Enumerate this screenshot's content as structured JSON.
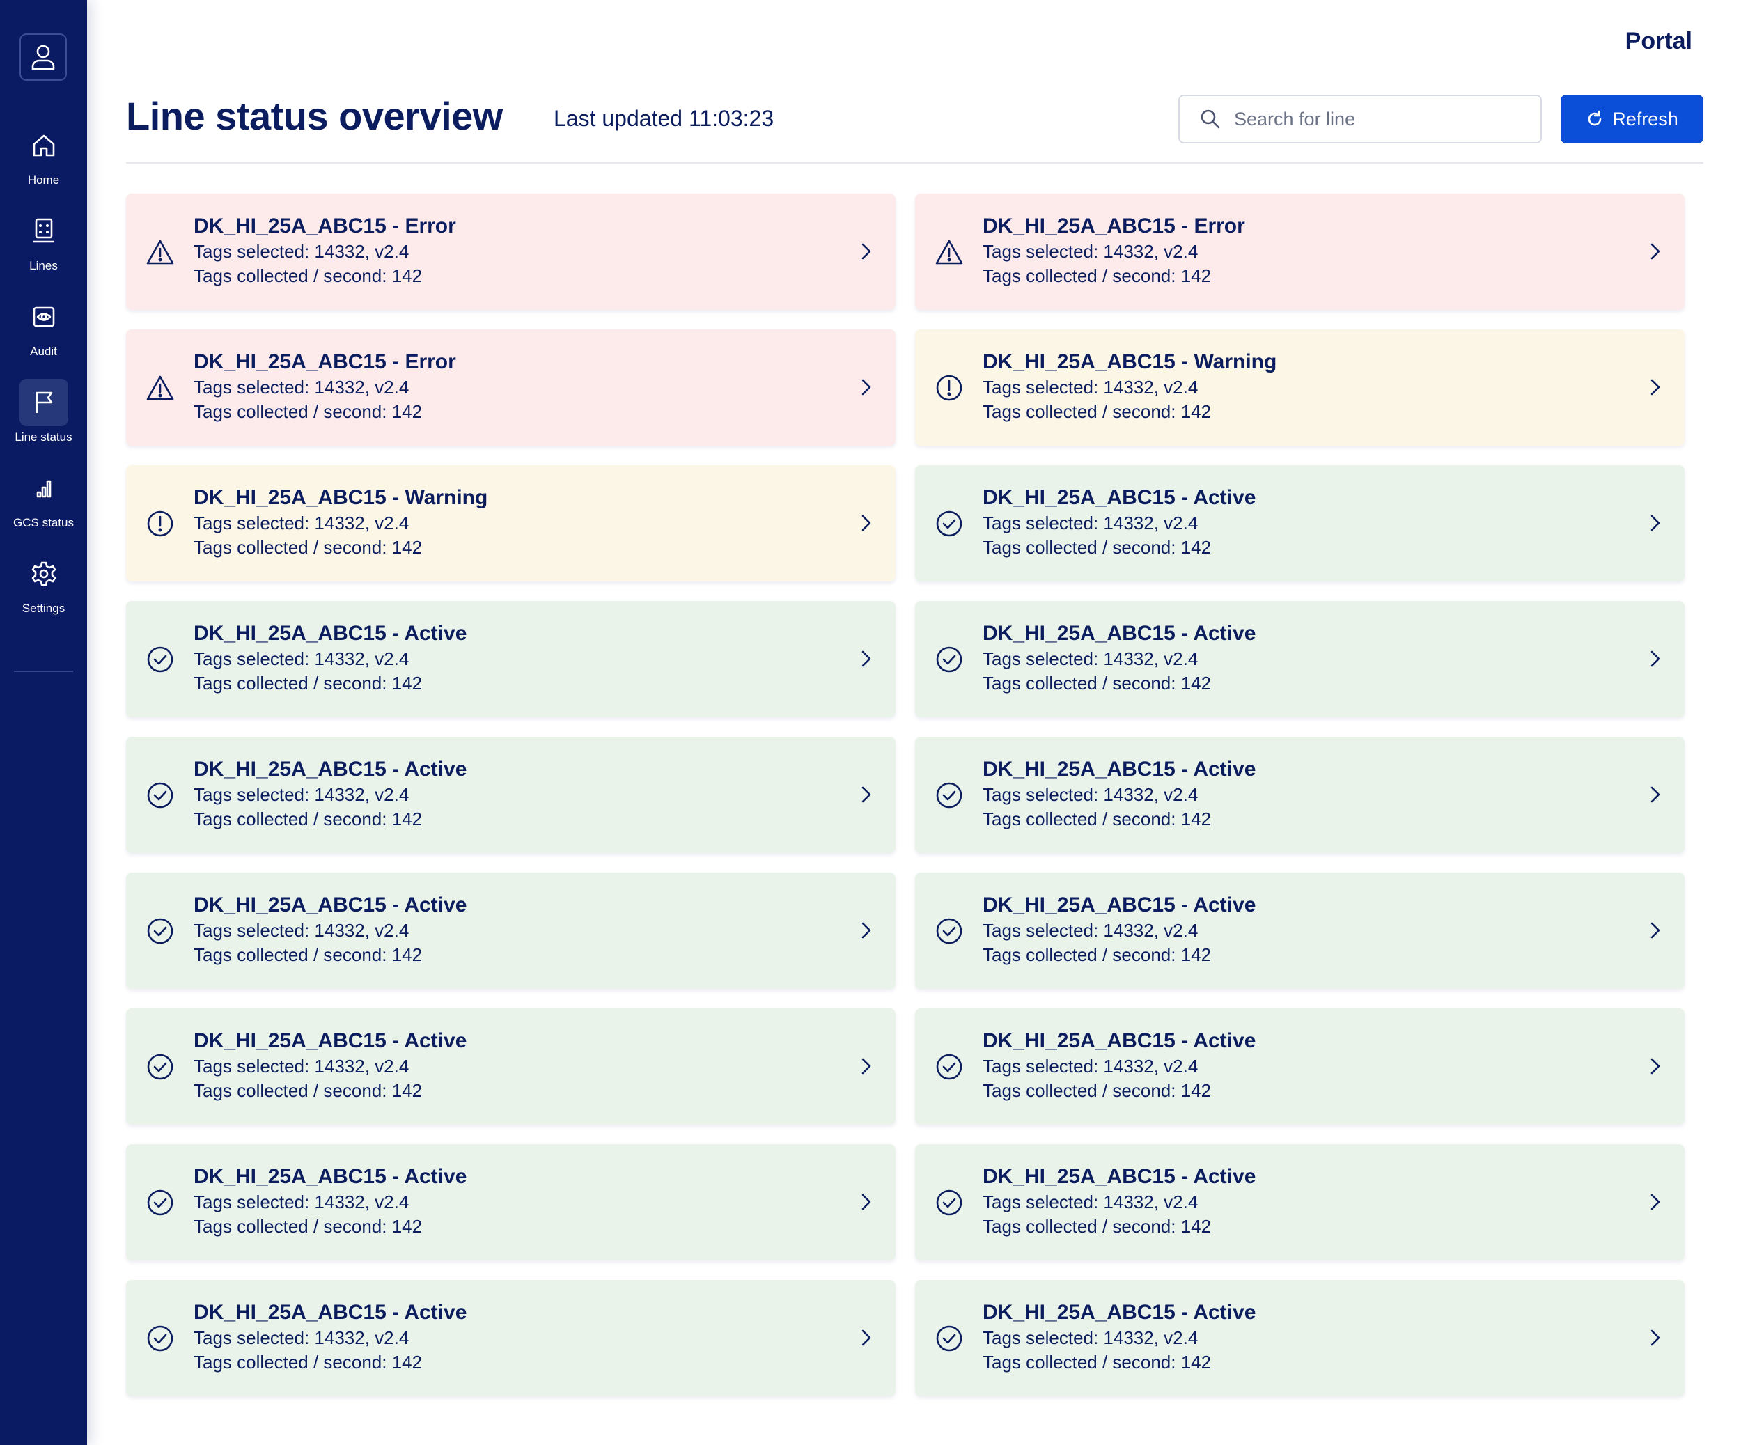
{
  "app": {
    "brand": "Portal"
  },
  "sidebar": {
    "items": [
      {
        "label": "Home",
        "icon": "home-icon"
      },
      {
        "label": "Lines",
        "icon": "lines-icon"
      },
      {
        "label": "Audit",
        "icon": "eye-icon"
      },
      {
        "label": "Line status",
        "icon": "flag-icon",
        "active": true
      },
      {
        "label": "GCS status",
        "icon": "bar-chart-icon"
      },
      {
        "label": "Settings",
        "icon": "gear-icon"
      }
    ]
  },
  "header": {
    "title": "Line status overview",
    "last_updated": "Last updated 11:03:23",
    "search_placeholder": "Search for line",
    "refresh_label": "Refresh"
  },
  "colors": {
    "sidebar_bg": "#0a1a63",
    "primary": "#0b4fd8",
    "error_bg": "#fcebea",
    "warning_bg": "#fcf6e6",
    "active_bg": "#eaf3ea",
    "text": "#0b1d5e"
  },
  "cards": [
    {
      "status": "error",
      "title": "DK_HI_25A_ABC15 - Error",
      "tags_selected": "Tags selected: 14332, v2.4",
      "tags_rate": "Tags collected / second: 142"
    },
    {
      "status": "error",
      "title": "DK_HI_25A_ABC15 - Error",
      "tags_selected": "Tags selected: 14332, v2.4",
      "tags_rate": "Tags collected / second: 142"
    },
    {
      "status": "error",
      "title": "DK_HI_25A_ABC15 - Error",
      "tags_selected": "Tags selected: 14332, v2.4",
      "tags_rate": "Tags collected / second: 142"
    },
    {
      "status": "warning",
      "title": "DK_HI_25A_ABC15 - Warning",
      "tags_selected": "Tags selected: 14332, v2.4",
      "tags_rate": "Tags collected / second: 142"
    },
    {
      "status": "warning",
      "title": "DK_HI_25A_ABC15 - Warning",
      "tags_selected": "Tags selected: 14332, v2.4",
      "tags_rate": "Tags collected / second: 142"
    },
    {
      "status": "active",
      "title": "DK_HI_25A_ABC15 - Active",
      "tags_selected": "Tags selected: 14332, v2.4",
      "tags_rate": "Tags collected / second: 142"
    },
    {
      "status": "active",
      "title": "DK_HI_25A_ABC15 - Active",
      "tags_selected": "Tags selected: 14332, v2.4",
      "tags_rate": "Tags collected / second: 142"
    },
    {
      "status": "active",
      "title": "DK_HI_25A_ABC15 - Active",
      "tags_selected": "Tags selected: 14332, v2.4",
      "tags_rate": "Tags collected / second: 142"
    },
    {
      "status": "active",
      "title": "DK_HI_25A_ABC15 - Active",
      "tags_selected": "Tags selected: 14332, v2.4",
      "tags_rate": "Tags collected / second: 142"
    },
    {
      "status": "active",
      "title": "DK_HI_25A_ABC15 - Active",
      "tags_selected": "Tags selected: 14332, v2.4",
      "tags_rate": "Tags collected / second: 142"
    },
    {
      "status": "active",
      "title": "DK_HI_25A_ABC15 - Active",
      "tags_selected": "Tags selected: 14332, v2.4",
      "tags_rate": "Tags collected / second: 142"
    },
    {
      "status": "active",
      "title": "DK_HI_25A_ABC15 - Active",
      "tags_selected": "Tags selected: 14332, v2.4",
      "tags_rate": "Tags collected / second: 142"
    },
    {
      "status": "active",
      "title": "DK_HI_25A_ABC15 - Active",
      "tags_selected": "Tags selected: 14332, v2.4",
      "tags_rate": "Tags collected / second: 142"
    },
    {
      "status": "active",
      "title": "DK_HI_25A_ABC15 - Active",
      "tags_selected": "Tags selected: 14332, v2.4",
      "tags_rate": "Tags collected / second: 142"
    },
    {
      "status": "active",
      "title": "DK_HI_25A_ABC15 - Active",
      "tags_selected": "Tags selected: 14332, v2.4",
      "tags_rate": "Tags collected / second: 142"
    },
    {
      "status": "active",
      "title": "DK_HI_25A_ABC15 - Active",
      "tags_selected": "Tags selected: 14332, v2.4",
      "tags_rate": "Tags collected / second: 142"
    },
    {
      "status": "active",
      "title": "DK_HI_25A_ABC15 - Active",
      "tags_selected": "Tags selected: 14332, v2.4",
      "tags_rate": "Tags collected / second: 142"
    },
    {
      "status": "active",
      "title": "DK_HI_25A_ABC15 - Active",
      "tags_selected": "Tags selected: 14332, v2.4",
      "tags_rate": "Tags collected / second: 142"
    }
  ]
}
